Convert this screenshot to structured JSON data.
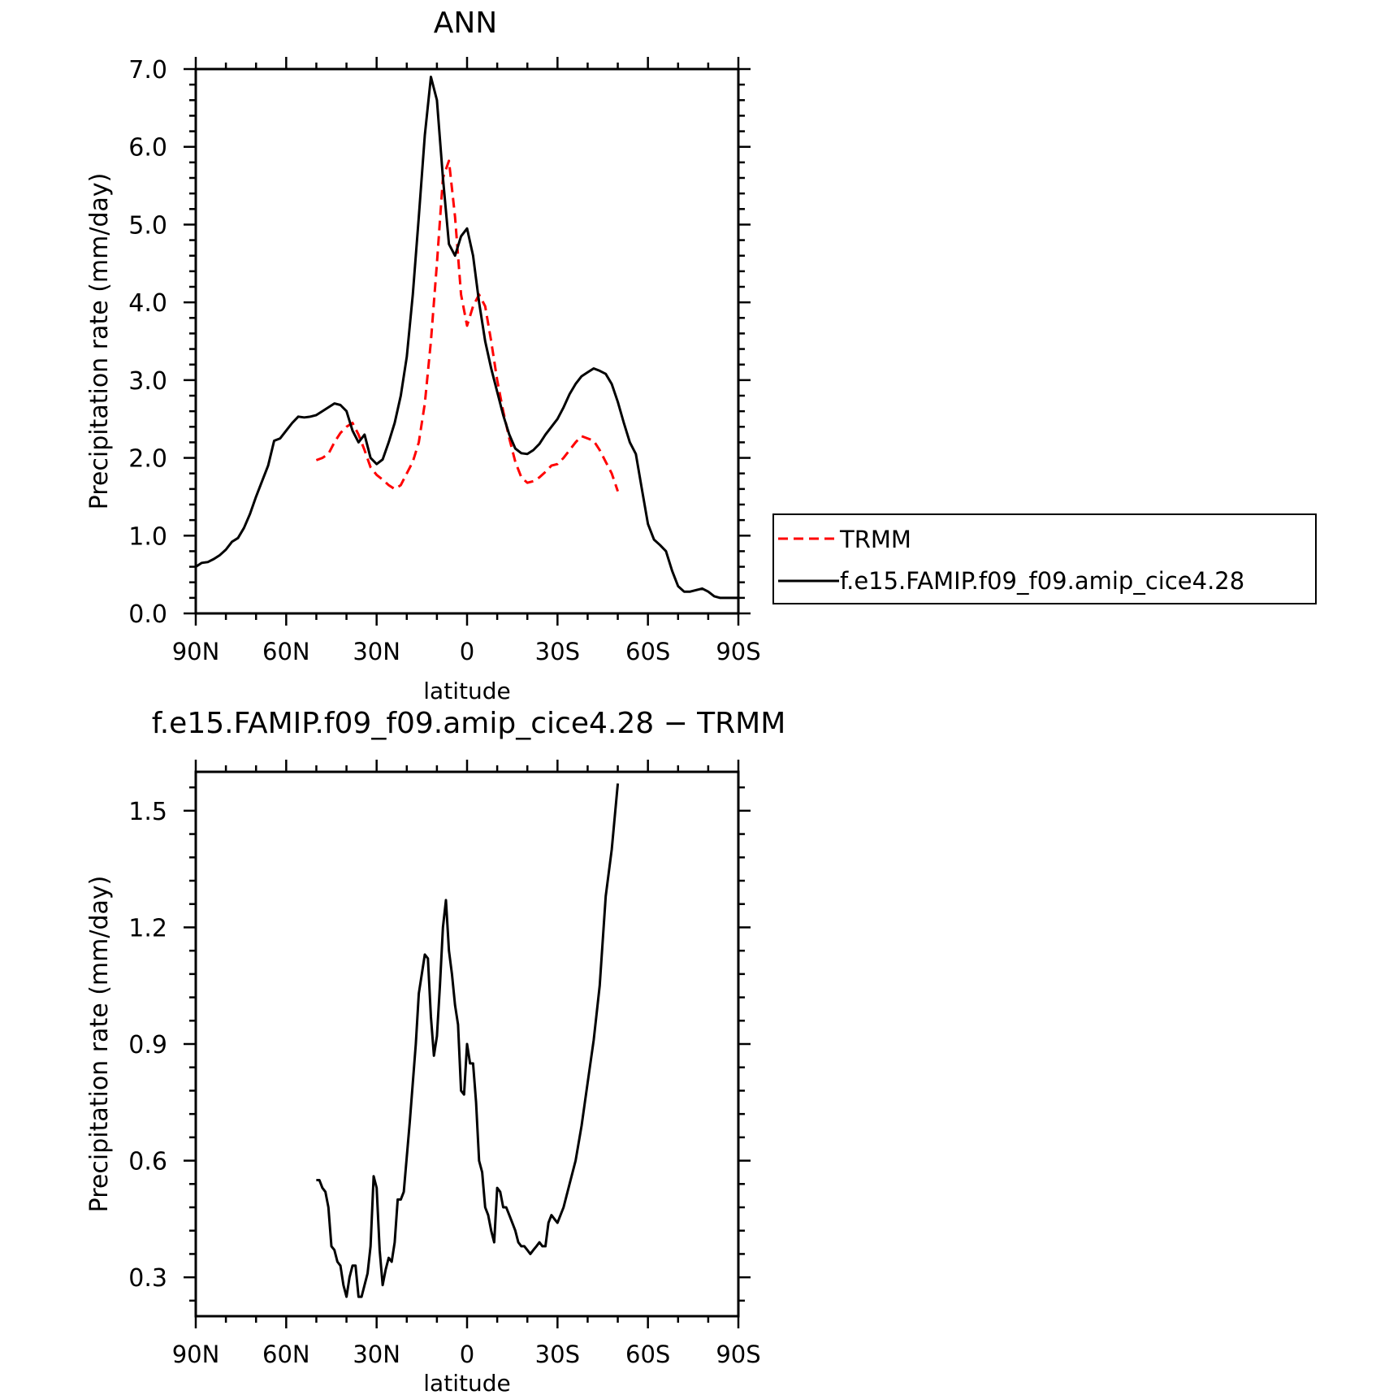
{
  "chart_data": [
    {
      "type": "line",
      "title": "ANN",
      "xlabel": "latitude",
      "ylabel": "Precipitation rate (mm/day)",
      "xlim": [
        90,
        -90
      ],
      "ylim": [
        0,
        7
      ],
      "x_ticks": [
        90,
        60,
        30,
        0,
        -30,
        -60,
        -90
      ],
      "x_tick_labels": [
        "90N",
        "60N",
        "30N",
        "0",
        "30S",
        "60S",
        "90S"
      ],
      "y_ticks": [
        0,
        1,
        2,
        3,
        4,
        5,
        6,
        7
      ],
      "y_tick_labels": [
        "0.0",
        "1.0",
        "2.0",
        "3.0",
        "4.0",
        "5.0",
        "6.0",
        "7.0"
      ],
      "legend_position": "right, outside plot",
      "series": [
        {
          "name": "TRMM",
          "color": "#ff0000",
          "dash": "dashed",
          "x": [
            50,
            48,
            46,
            44,
            42,
            40,
            38,
            36,
            34,
            32,
            30,
            28,
            26,
            24,
            22,
            20,
            18,
            16,
            14,
            12,
            10,
            8,
            6,
            4,
            2,
            0,
            -2,
            -4,
            -6,
            -8,
            -10,
            -12,
            -14,
            -16,
            -18,
            -20,
            -22,
            -24,
            -26,
            -28,
            -30,
            -32,
            -34,
            -36,
            -38,
            -40,
            -42,
            -44,
            -46,
            -48,
            -50
          ],
          "y": [
            1.97,
            2.0,
            2.05,
            2.2,
            2.32,
            2.4,
            2.45,
            2.3,
            2.1,
            1.88,
            1.78,
            1.72,
            1.65,
            1.6,
            1.65,
            1.8,
            1.95,
            2.2,
            2.7,
            3.5,
            4.5,
            5.6,
            5.82,
            5.1,
            4.1,
            3.7,
            3.95,
            4.1,
            3.95,
            3.5,
            3.0,
            2.6,
            2.25,
            1.95,
            1.75,
            1.68,
            1.7,
            1.75,
            1.82,
            1.9,
            1.92,
            2.0,
            2.1,
            2.2,
            2.28,
            2.25,
            2.22,
            2.1,
            1.95,
            1.8,
            1.57
          ]
        },
        {
          "name": "f.e15.FAMIP.f09_f09.amip_cice4.28",
          "color": "#000000",
          "dash": "solid",
          "x": [
            90,
            88,
            86,
            84,
            82,
            80,
            78,
            76,
            74,
            72,
            70,
            68,
            66,
            64,
            62,
            60,
            58,
            56,
            54,
            52,
            50,
            48,
            46,
            44,
            42,
            40,
            38,
            36,
            34,
            32,
            30,
            28,
            26,
            24,
            22,
            20,
            18,
            16,
            14,
            12,
            10,
            8,
            6,
            4,
            2,
            0,
            -2,
            -4,
            -6,
            -8,
            -10,
            -12,
            -14,
            -16,
            -18,
            -20,
            -22,
            -24,
            -26,
            -28,
            -30,
            -32,
            -34,
            -36,
            -38,
            -40,
            -42,
            -44,
            -46,
            -48,
            -50,
            -52,
            -54,
            -56,
            -58,
            -60,
            -62,
            -64,
            -66,
            -68,
            -70,
            -72,
            -74,
            -76,
            -78,
            -80,
            -82,
            -84,
            -86,
            -88,
            -90
          ],
          "y": [
            0.6,
            0.65,
            0.66,
            0.7,
            0.75,
            0.82,
            0.92,
            0.97,
            1.1,
            1.28,
            1.5,
            1.7,
            1.9,
            2.22,
            2.25,
            2.35,
            2.45,
            2.53,
            2.52,
            2.53,
            2.55,
            2.6,
            2.65,
            2.7,
            2.68,
            2.6,
            2.35,
            2.2,
            2.3,
            2.0,
            1.92,
            1.98,
            2.2,
            2.45,
            2.8,
            3.3,
            4.1,
            5.1,
            6.15,
            6.9,
            6.6,
            5.6,
            4.75,
            4.6,
            4.85,
            4.95,
            4.6,
            4.0,
            3.5,
            3.15,
            2.85,
            2.55,
            2.3,
            2.12,
            2.06,
            2.05,
            2.1,
            2.18,
            2.3,
            2.4,
            2.5,
            2.65,
            2.82,
            2.95,
            3.05,
            3.1,
            3.15,
            3.12,
            3.08,
            2.95,
            2.72,
            2.45,
            2.2,
            2.05,
            1.6,
            1.15,
            0.95,
            0.88,
            0.8,
            0.55,
            0.35,
            0.28,
            0.28,
            0.3,
            0.32,
            0.28,
            0.22,
            0.2,
            0.2,
            0.2,
            0.2
          ]
        }
      ]
    },
    {
      "type": "line",
      "title": "f.e15.FAMIP.f09_f09.amip_cice4.28 − TRMM",
      "xlabel": "latitude",
      "ylabel": "Precipitation rate (mm/day)",
      "xlim": [
        90,
        -90
      ],
      "ylim": [
        0.2,
        1.6
      ],
      "x_ticks": [
        90,
        60,
        30,
        0,
        -30,
        -60,
        -90
      ],
      "x_tick_labels": [
        "90N",
        "60N",
        "30N",
        "0",
        "30S",
        "60S",
        "90S"
      ],
      "y_ticks": [
        0.3,
        0.6,
        0.9,
        1.2,
        1.5
      ],
      "y_tick_labels": [
        "0.3",
        "0.6",
        "0.9",
        "1.2",
        "1.5"
      ],
      "series": [
        {
          "color": "#000000",
          "dash": "solid",
          "x": [
            50,
            49,
            48,
            47,
            46,
            45,
            44,
            43,
            42,
            41,
            40,
            39,
            38,
            37,
            36,
            35,
            34,
            33,
            32,
            31,
            30,
            29,
            28,
            27,
            26,
            25,
            24,
            23,
            22,
            21,
            20,
            19,
            18,
            17,
            16,
            15,
            14,
            13,
            12,
            11,
            10,
            9,
            8,
            7,
            6,
            5,
            4,
            3,
            2,
            1,
            0,
            -1,
            -2,
            -3,
            -4,
            -5,
            -6,
            -7,
            -8,
            -9,
            -10,
            -11,
            -12,
            -13,
            -14,
            -15,
            -16,
            -17,
            -18,
            -19,
            -20,
            -21,
            -22,
            -23,
            -24,
            -25,
            -26,
            -27,
            -28,
            -29,
            -30,
            -32,
            -34,
            -36,
            -38,
            -40,
            -42,
            -44,
            -46,
            -48,
            -50
          ],
          "y": [
            0.55,
            0.55,
            0.53,
            0.52,
            0.48,
            0.38,
            0.37,
            0.34,
            0.33,
            0.28,
            0.25,
            0.3,
            0.33,
            0.33,
            0.25,
            0.25,
            0.28,
            0.31,
            0.38,
            0.56,
            0.53,
            0.37,
            0.28,
            0.32,
            0.35,
            0.34,
            0.39,
            0.5,
            0.5,
            0.52,
            0.61,
            0.7,
            0.8,
            0.9,
            1.03,
            1.08,
            1.13,
            1.12,
            0.97,
            0.87,
            0.92,
            1.05,
            1.2,
            1.27,
            1.14,
            1.08,
            1.0,
            0.95,
            0.78,
            0.77,
            0.9,
            0.85,
            0.85,
            0.75,
            0.6,
            0.57,
            0.48,
            0.46,
            0.42,
            0.39,
            0.53,
            0.52,
            0.48,
            0.48,
            0.46,
            0.44,
            0.42,
            0.39,
            0.38,
            0.38,
            0.37,
            0.36,
            0.37,
            0.38,
            0.39,
            0.38,
            0.38,
            0.44,
            0.46,
            0.45,
            0.44,
            0.48,
            0.54,
            0.6,
            0.69,
            0.8,
            0.91,
            1.05,
            1.28,
            1.4,
            1.57
          ]
        }
      ]
    }
  ]
}
